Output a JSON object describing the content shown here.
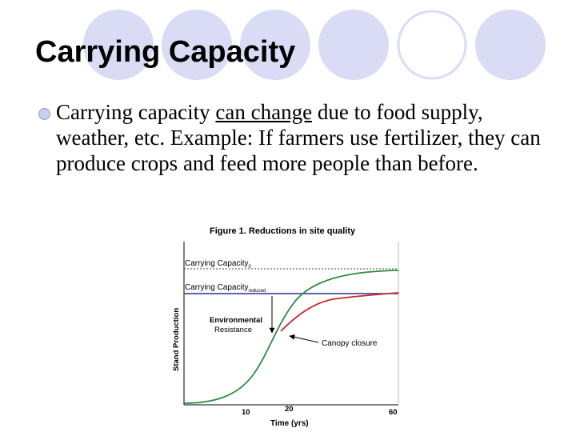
{
  "slide": {
    "title": "Carrying Capacity",
    "bullet": {
      "before": "Carrying capacity ",
      "underlined": "can change",
      "after": " due to food supply, weather, etc. Example: If farmers use fertilizer, they can produce crops and feed more people than before."
    }
  },
  "figure": {
    "title": "Figure 1.  Reductions in site quality",
    "cc0_label": "Carrying Capacity",
    "cc0_sub": "0",
    "cc1_label": "Carrying Capacity",
    "cc1_sub": "reduced",
    "env_line1": "Environmental",
    "env_line2": "Resistance",
    "canopy_label": "Canopy closure",
    "xlabel": "Time (yrs)",
    "ylabel": "Stand Production",
    "xticks": [
      "10",
      "20",
      "60"
    ],
    "colors": {
      "green": "#2e8b3e",
      "red": "#c8282d",
      "blue": "#2a2f86",
      "circle": "#d9dcf4"
    }
  }
}
